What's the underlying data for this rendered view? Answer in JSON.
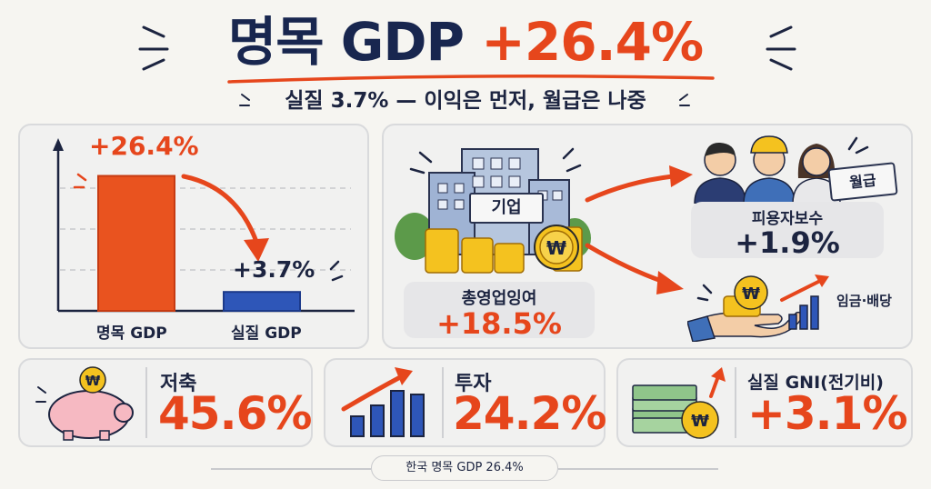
{
  "title": {
    "part1": "명목 GDP",
    "part2": "+26.4%"
  },
  "subtitle": "실질 3.7% — 이익은 먼저, 월급은 나중",
  "bar_panel": {
    "nominal_label": "명목 GDP",
    "real_label": "실질 GDP",
    "nominal_value": "+26.4%",
    "real_value": "+3.7%"
  },
  "chart_data": {
    "type": "bar",
    "categories": [
      "명목 GDP",
      "실질 GDP"
    ],
    "values": [
      26.4,
      3.7
    ],
    "ylim": [
      0,
      32
    ],
    "grid": true
  },
  "flow_panel": {
    "company_sign": "기업",
    "operating_surplus_label": "총영업잉여",
    "operating_surplus_value": "+18.5%",
    "pay_card": "월급",
    "compensation_label": "피용자보수",
    "compensation_value": "+1.9%",
    "wages_dividends_label": "임금·배당"
  },
  "stats": [
    {
      "label": "저축",
      "value": "45.6%"
    },
    {
      "label": "투자",
      "value": "24.2%"
    },
    {
      "label": "실질 GNI(전기비)",
      "value": "+3.1%"
    }
  ],
  "footer": "한국 명목 GDP 26.4%",
  "colors": {
    "accent": "#e6461c",
    "navy": "#18264f",
    "bar_real": "#2e56b8",
    "coin": "#f4c21f",
    "panel": "#f1f1f0"
  }
}
